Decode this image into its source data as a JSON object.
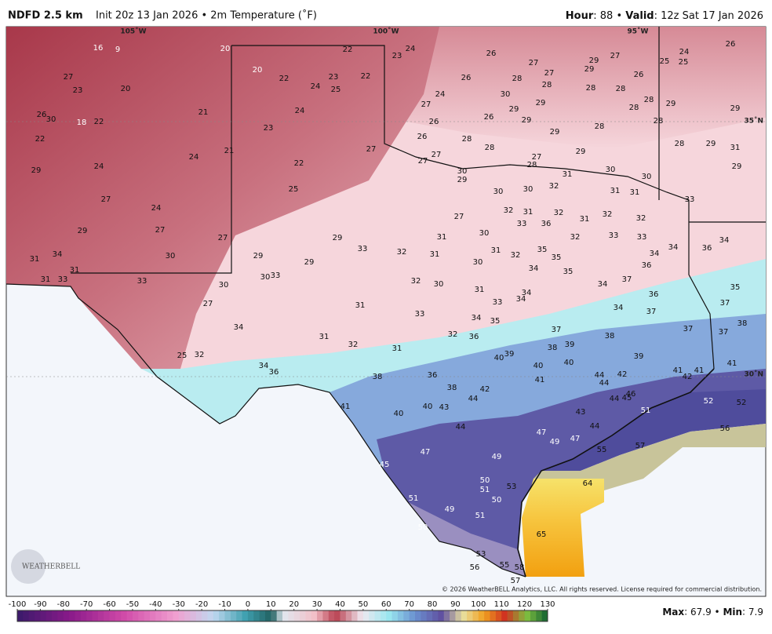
{
  "header": {
    "model": "NDFD 2.5 km",
    "init": "Init 20z 13 Jan 2026 • 2m Temperature (˚F)",
    "hour_label": "Hour",
    "hour_text": ": 88 •",
    "valid_label": "Valid",
    "valid_text": ": 12z Sat 17 Jan 2026"
  },
  "grid_labels": [
    "105˚W",
    "100˚W",
    "95˚W",
    "35˚N",
    "30˚N"
  ],
  "logo": "WEATHERBELL",
  "copyright": "© 2026 WeatherBELL Analytics, LLC. All rights reserved. License required for commercial distribution.",
  "stations": [
    16,
    9,
    20,
    22,
    23,
    24,
    26,
    27,
    29,
    27,
    25,
    24,
    25,
    26,
    27,
    23,
    20,
    20,
    22,
    24,
    23,
    25,
    22,
    26,
    28,
    27,
    28,
    29,
    26,
    28,
    28,
    28,
    29,
    29,
    26,
    30,
    18,
    22,
    21,
    24,
    24,
    30,
    27,
    29,
    29,
    28,
    28,
    26,
    26,
    29,
    28,
    22,
    23,
    29,
    26,
    28,
    28,
    27,
    21,
    24,
    27,
    27,
    27,
    28,
    29,
    28,
    29,
    31,
    29,
    24,
    22,
    30,
    29,
    31,
    30,
    30,
    29,
    27,
    25,
    30,
    30,
    32,
    31,
    31,
    33,
    24,
    27,
    32,
    31,
    32,
    31,
    32,
    32,
    29,
    27,
    29,
    33,
    36,
    31,
    30,
    32,
    33,
    33,
    34,
    31,
    34,
    30,
    27,
    29,
    33,
    32,
    31,
    31,
    32,
    35,
    35,
    34,
    34,
    36,
    31,
    31,
    33,
    33,
    30,
    30,
    33,
    29,
    30,
    34,
    35,
    36,
    27,
    31,
    32,
    30,
    31,
    33,
    34,
    34,
    34,
    37,
    36,
    35,
    37,
    34,
    33,
    34,
    35,
    34,
    37,
    38,
    37,
    37,
    31,
    32,
    31,
    32,
    36,
    37,
    38,
    38,
    39,
    39,
    25,
    32,
    34,
    36,
    40,
    39,
    40,
    40,
    41,
    42,
    41,
    41,
    42,
    44,
    38,
    36,
    41,
    44,
    46,
    45,
    44,
    38,
    42,
    44,
    41,
    40,
    40,
    43,
    43,
    51,
    52,
    52,
    44,
    47,
    44,
    49,
    47,
    56,
    55,
    57,
    47,
    49,
    45,
    64,
    50,
    51,
    53,
    50,
    51,
    49,
    51,
    65,
    50,
    53,
    56,
    55,
    58,
    57
  ],
  "colorbar": {
    "ticks": [
      -100,
      -90,
      -80,
      -70,
      -60,
      -50,
      -40,
      -30,
      -20,
      -10,
      0,
      10,
      20,
      30,
      40,
      50,
      60,
      70,
      80,
      90,
      100,
      110,
      120,
      130
    ]
  },
  "stats": {
    "max_label": "Max",
    "max": 67.9,
    "sep": "•",
    "min_label": "Min",
    "min": 7.9
  }
}
